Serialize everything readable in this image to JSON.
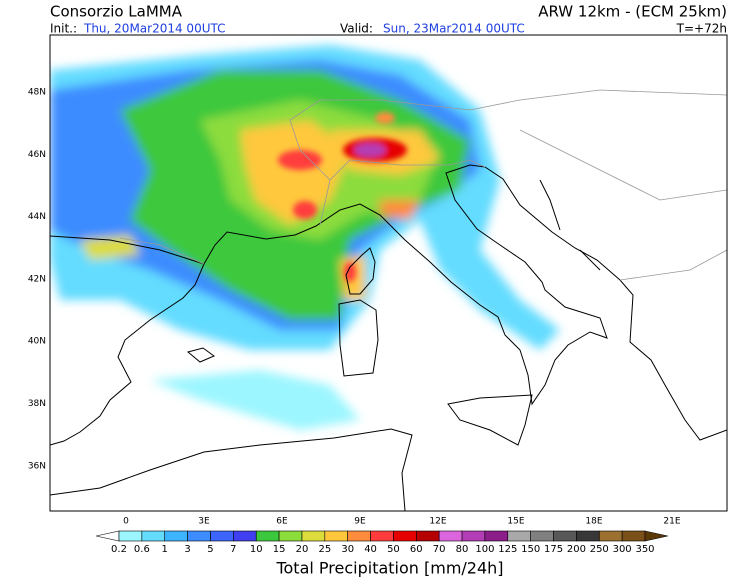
{
  "header": {
    "title": "Consorzio LaMMA",
    "model": "ARW 12km - (ECM 25km)",
    "init_label": "Init.:",
    "init_date": "Thu, 20Mar2014 00UTC",
    "valid_label": "Valid:",
    "valid_date": "Sun, 23Mar2014 00UTC",
    "forecast_step": "T=+72h"
  },
  "map": {
    "lat_labels": [
      "48N",
      "46N",
      "44N",
      "42N",
      "40N",
      "38N",
      "36N"
    ],
    "lon_labels": [
      "0",
      "3E",
      "6E",
      "9E",
      "12E",
      "15E",
      "18E",
      "21E"
    ]
  },
  "legend": {
    "title": "Total Precipitation [mm/24h]",
    "labels": [
      "0.2",
      "0.6",
      "1",
      "3",
      "5",
      "7",
      "10",
      "15",
      "20",
      "25",
      "30",
      "40",
      "50",
      "60",
      "70",
      "80",
      "100",
      "125",
      "150",
      "175",
      "200",
      "250",
      "300",
      "350"
    ],
    "colors": [
      "#9cf6ff",
      "#64dcff",
      "#3cb4ff",
      "#3c8cff",
      "#3c64ff",
      "#4040f0",
      "#3cc83c",
      "#8cdc3c",
      "#dcdc3c",
      "#ffc83c",
      "#ff8c3c",
      "#ff3c3c",
      "#e60000",
      "#b40000",
      "#dc64dc",
      "#b43cb4",
      "#8c1e8c",
      "#a8a8a8",
      "#808080",
      "#585858",
      "#383838",
      "#9c7030",
      "#7a5018"
    ],
    "under_color": "#ffffff",
    "over_color": "#5a3808"
  }
}
